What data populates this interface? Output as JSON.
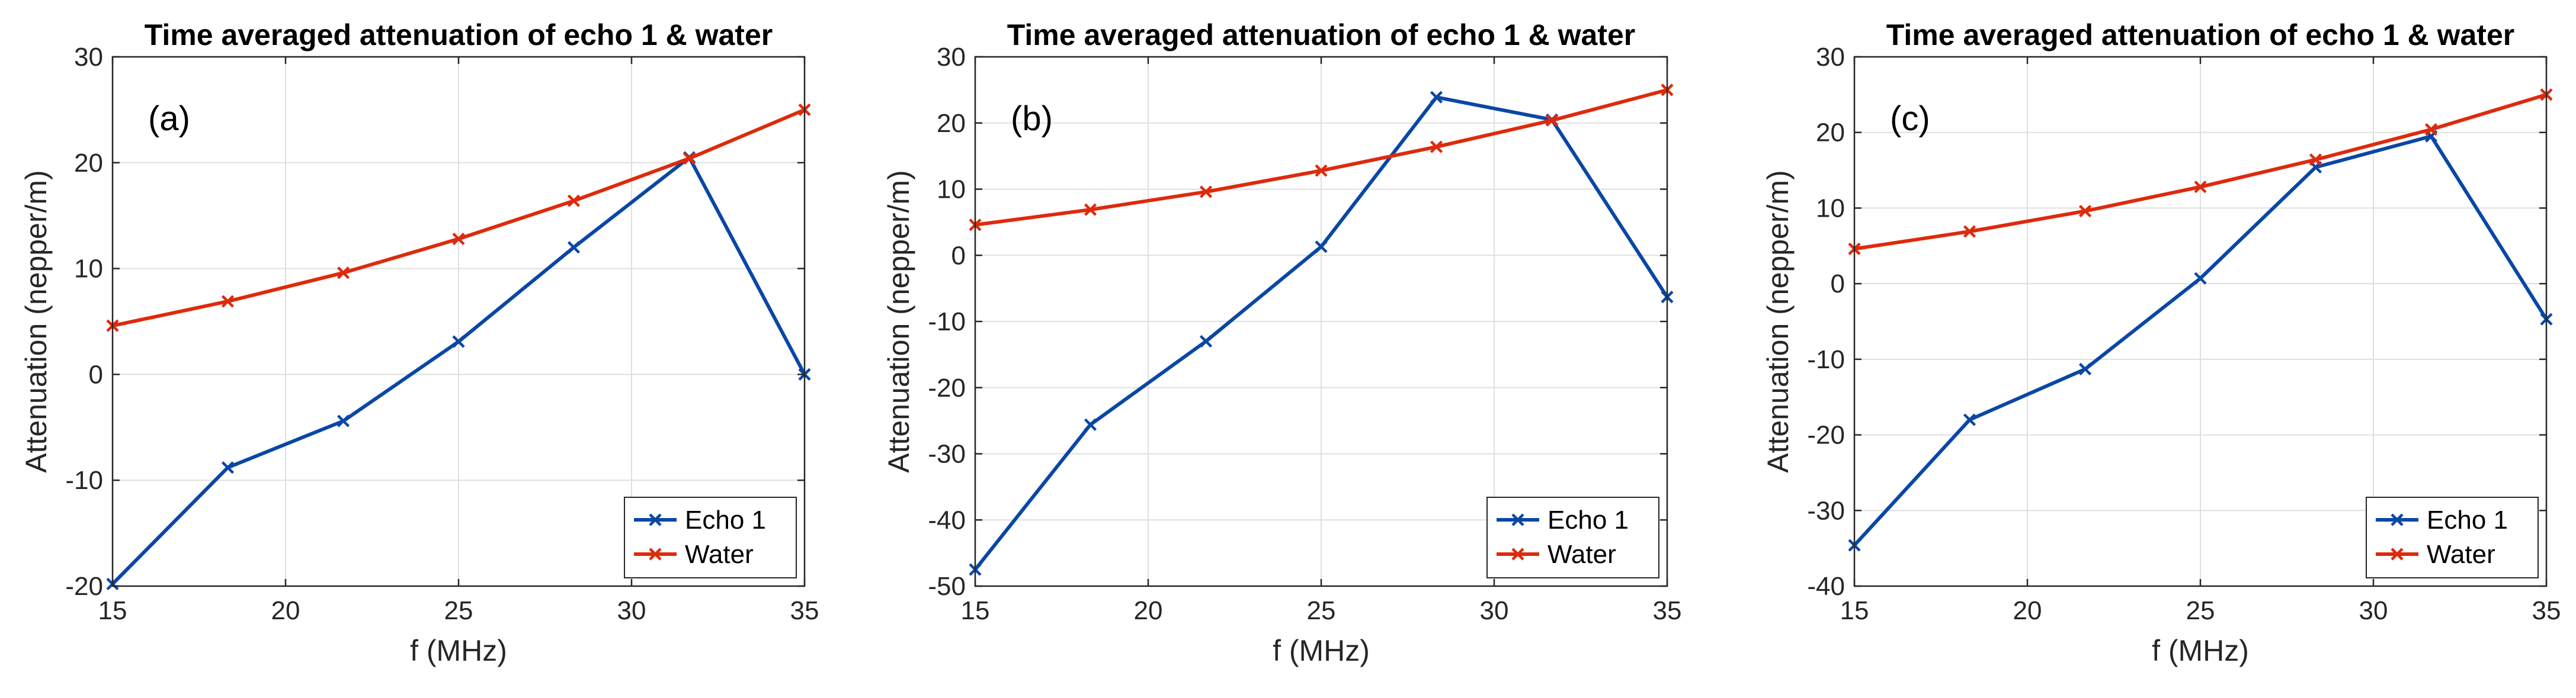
{
  "chart_data": [
    {
      "type": "line",
      "title": "Time averaged attenuation of echo 1 & water",
      "panel_label": "(a)",
      "xlabel": "f (MHz)",
      "ylabel": "Attenuation (nepper/m)",
      "xlim": [
        15,
        35
      ],
      "ylim": [
        -20,
        30
      ],
      "xticks": [
        15,
        20,
        25,
        30,
        35
      ],
      "yticks": [
        -20,
        -10,
        0,
        10,
        20,
        30
      ],
      "grid": true,
      "legend_position": "bottom-right",
      "x": [
        15,
        18.33,
        21.67,
        25,
        28.33,
        31.67,
        35
      ],
      "series": [
        {
          "name": "Echo 1",
          "color": "#0a47a5",
          "values": [
            -19.8,
            -8.8,
            -4.4,
            3.1,
            12.0,
            20.5,
            0.0
          ]
        },
        {
          "name": "Water",
          "color": "#de2a0c",
          "values": [
            4.6,
            6.9,
            9.6,
            12.8,
            16.4,
            20.4,
            25.0
          ]
        }
      ]
    },
    {
      "type": "line",
      "title": "Time averaged attenuation of echo 1 & water",
      "panel_label": "(b)",
      "xlabel": "f (MHz)",
      "ylabel": "Attenuation (nepper/m)",
      "xlim": [
        15,
        35
      ],
      "ylim": [
        -50,
        30
      ],
      "xticks": [
        15,
        20,
        25,
        30,
        35
      ],
      "yticks": [
        -50,
        -40,
        -30,
        -20,
        -10,
        0,
        10,
        20,
        30
      ],
      "grid": true,
      "legend_position": "bottom-right",
      "x": [
        15,
        18.33,
        21.67,
        25,
        28.33,
        31.67,
        35
      ],
      "series": [
        {
          "name": "Echo 1",
          "color": "#0a47a5",
          "values": [
            -47.5,
            -25.6,
            -13.0,
            1.3,
            23.9,
            20.5,
            -6.3
          ]
        },
        {
          "name": "Water",
          "color": "#de2a0c",
          "values": [
            4.6,
            6.9,
            9.6,
            12.8,
            16.4,
            20.4,
            25.0
          ]
        }
      ]
    },
    {
      "type": "line",
      "title": "Time averaged attenuation of echo 1 & water",
      "panel_label": "(c)",
      "xlabel": "f (MHz)",
      "ylabel": "Attenuation (nepper/m)",
      "xlim": [
        15,
        35
      ],
      "ylim": [
        -40,
        30
      ],
      "xticks": [
        15,
        20,
        25,
        30,
        35
      ],
      "yticks": [
        -40,
        -30,
        -20,
        -10,
        0,
        10,
        20,
        30
      ],
      "grid": true,
      "legend_position": "bottom-right",
      "x": [
        15,
        18.33,
        21.67,
        25,
        28.33,
        31.67,
        35
      ],
      "series": [
        {
          "name": "Echo 1",
          "color": "#0a47a5",
          "values": [
            -34.6,
            -18.0,
            -11.3,
            0.7,
            15.4,
            19.5,
            -4.7
          ]
        },
        {
          "name": "Water",
          "color": "#de2a0c",
          "values": [
            4.6,
            6.9,
            9.6,
            12.8,
            16.4,
            20.4,
            25.0
          ]
        }
      ]
    }
  ]
}
